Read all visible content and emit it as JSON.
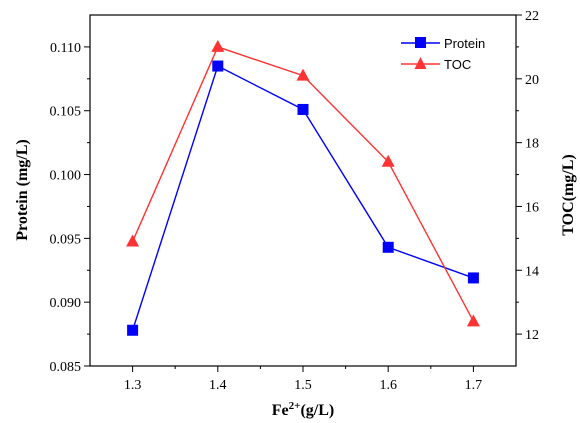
{
  "chart_data": {
    "type": "line",
    "x": [
      1.3,
      1.4,
      1.5,
      1.6,
      1.7
    ],
    "xlabel_base": "Fe",
    "xlabel_sup": "2+",
    "xlabel_rest": "(g/L)",
    "xlim": [
      1.25,
      1.75
    ],
    "xticks": [
      "1.3",
      "1.4",
      "1.5",
      "1.6",
      "1.7"
    ],
    "ylabel_left": "Protein (mg/L)",
    "ylim_left": [
      0.085,
      0.1125
    ],
    "yticks_left": [
      "0.085",
      "0.090",
      "0.095",
      "0.100",
      "0.105",
      "0.110"
    ],
    "ylabel_right": "TOC(mg/L)",
    "ylim_right": [
      11,
      22
    ],
    "yticks_right": [
      "12",
      "14",
      "16",
      "18",
      "20",
      "22"
    ],
    "grid": false,
    "legend_position": "top-right",
    "series": [
      {
        "name": "Protein",
        "axis": "left",
        "marker": "square",
        "color": "#0000ff",
        "values": [
          0.0878,
          0.1085,
          0.1051,
          0.0943,
          0.0919
        ]
      },
      {
        "name": "TOC",
        "axis": "right",
        "marker": "triangle",
        "color": "#ff0000",
        "values": [
          14.9,
          21.0,
          20.1,
          17.4,
          12.4
        ]
      }
    ]
  }
}
